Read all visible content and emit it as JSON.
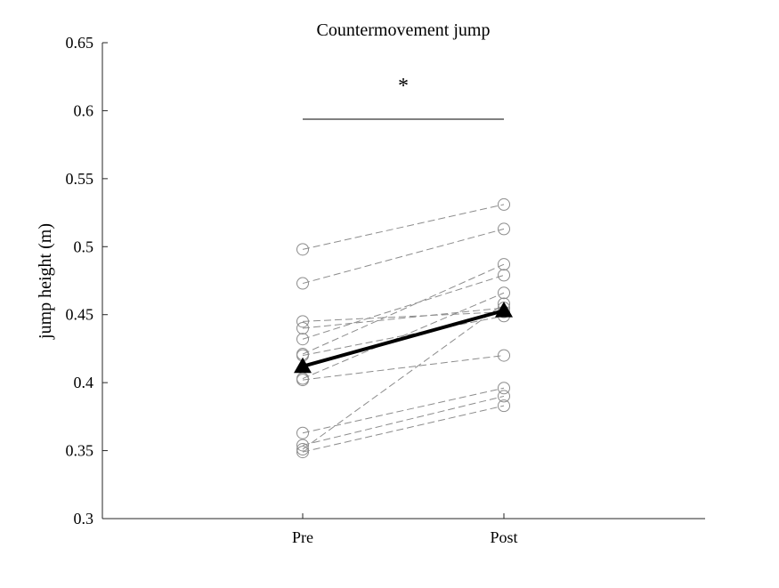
{
  "chart_data": {
    "type": "line",
    "title": "Countermovement jump",
    "xlabel": "",
    "ylabel": "jump height (m)",
    "categories": [
      "Pre",
      "Post"
    ],
    "ylim": [
      0.3,
      0.65
    ],
    "yticks": [
      "0.3",
      "0.35",
      "0.4",
      "0.45",
      "0.5",
      "0.55",
      "0.6",
      "0.65"
    ],
    "grid": false,
    "significance_marker": "*",
    "individual_series": [
      {
        "values": [
          0.498,
          0.531
        ]
      },
      {
        "values": [
          0.473,
          0.513
        ]
      },
      {
        "values": [
          0.445,
          0.452
        ]
      },
      {
        "values": [
          0.44,
          0.455
        ]
      },
      {
        "values": [
          0.432,
          0.479
        ]
      },
      {
        "values": [
          0.421,
          0.487
        ]
      },
      {
        "values": [
          0.42,
          0.449
        ]
      },
      {
        "values": [
          0.403,
          0.466
        ]
      },
      {
        "values": [
          0.402,
          0.42
        ]
      },
      {
        "values": [
          0.363,
          0.396
        ]
      },
      {
        "values": [
          0.354,
          0.39
        ]
      },
      {
        "values": [
          0.351,
          0.458
        ]
      },
      {
        "values": [
          0.349,
          0.383
        ]
      }
    ],
    "mean_series": {
      "values": [
        0.412,
        0.453
      ]
    },
    "colors": {
      "individual": "#8c8c8c",
      "mean": "#000000",
      "axis": "#262626"
    }
  }
}
